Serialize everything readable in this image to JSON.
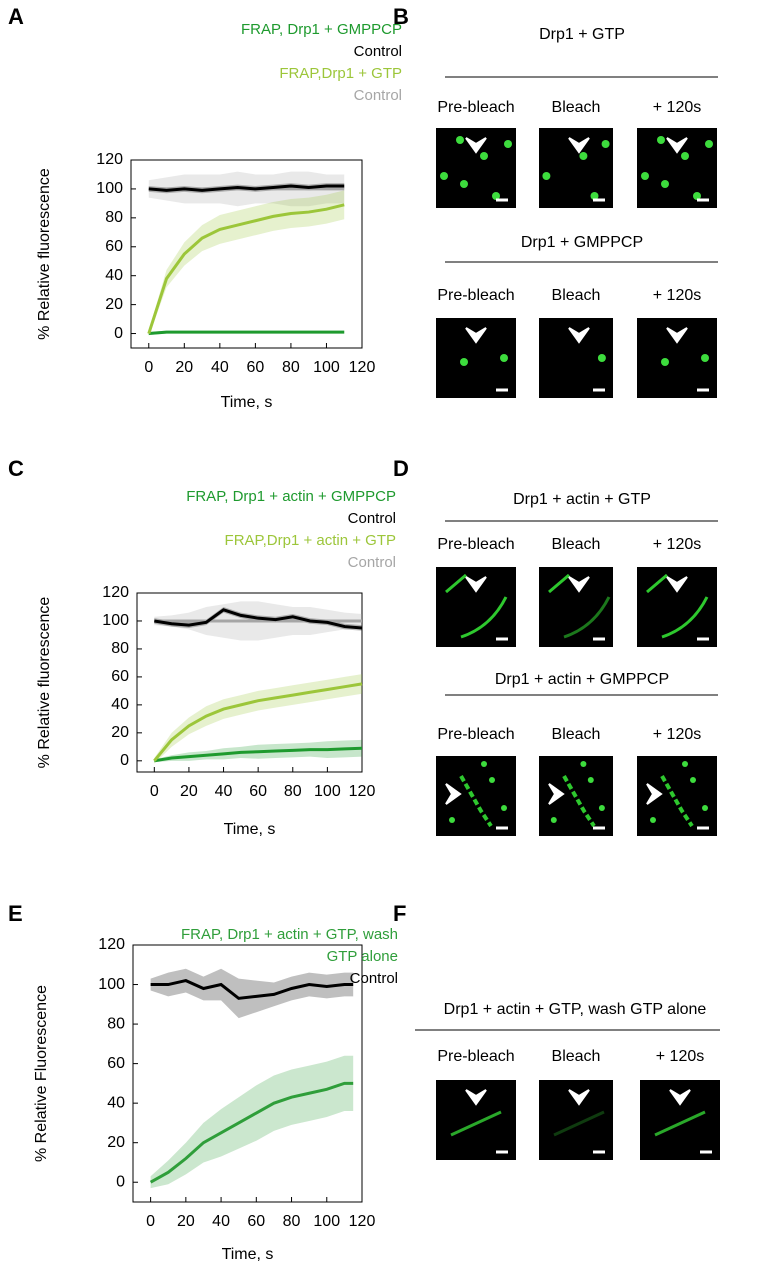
{
  "panel_letters": [
    "A",
    "B",
    "C",
    "D",
    "E",
    "F"
  ],
  "chart_data": [
    {
      "type": "line",
      "xlabel": "Time,  s",
      "ylabel": "% Relative  fluorescence",
      "x": [
        0,
        10,
        20,
        30,
        40,
        50,
        60,
        70,
        80,
        90,
        100,
        110
      ],
      "xlim": [
        -10,
        120
      ],
      "ylim": [
        -10,
        120
      ],
      "xticks": [
        0,
        20,
        40,
        60,
        80,
        100,
        120
      ],
      "yticks": [
        0,
        20,
        40,
        60,
        80,
        100,
        120
      ],
      "series": [
        {
          "name": "FRAP,  Drp1 + GMPPCP",
          "color": "#1e9a2e",
          "values": [
            0,
            1,
            1,
            1,
            1,
            1,
            1,
            1,
            1,
            1,
            1,
            1
          ],
          "error": [
            1,
            1,
            1,
            1,
            1,
            1,
            1,
            1,
            1,
            1,
            1,
            1
          ]
        },
        {
          "name": "Control",
          "color": "#000000",
          "values": [
            100,
            99,
            100,
            99,
            100,
            101,
            100,
            101,
            102,
            101,
            102,
            102
          ],
          "error": [
            2,
            2,
            2,
            2,
            2,
            2,
            2,
            2,
            2,
            2,
            2,
            2
          ]
        },
        {
          "name": "FRAP,Drp1 + GTP",
          "color": "#9cc63a",
          "values": [
            0,
            38,
            55,
            66,
            72,
            75,
            78,
            81,
            83,
            84,
            86,
            89
          ],
          "error": [
            2,
            6,
            8,
            9,
            10,
            10,
            10,
            10,
            10,
            10,
            10,
            10
          ]
        },
        {
          "name": "Control",
          "color": "#a6a6a6",
          "values": [
            100,
            100,
            100,
            100,
            100,
            100,
            100,
            100,
            100,
            100,
            100,
            100
          ],
          "error": [
            6,
            8,
            10,
            10,
            10,
            12,
            10,
            10,
            12,
            12,
            10,
            10
          ]
        }
      ]
    },
    {
      "type": "line",
      "xlabel": "Time,  s",
      "ylabel": "% Relative  fluorescence",
      "x": [
        0,
        10,
        20,
        30,
        40,
        50,
        60,
        70,
        80,
        90,
        100,
        110,
        120
      ],
      "xlim": [
        -10,
        120
      ],
      "ylim": [
        -8,
        120
      ],
      "xticks": [
        0,
        20,
        40,
        60,
        80,
        100,
        120
      ],
      "yticks": [
        0,
        20,
        40,
        60,
        80,
        100,
        120
      ],
      "series": [
        {
          "name": "FRAP,  Drp1 + actin + GMPPCP",
          "color": "#1e9a2e",
          "values": [
            0,
            2,
            3,
            4,
            5,
            6,
            6.5,
            7,
            7.5,
            8,
            8,
            8.5,
            9
          ],
          "error": [
            1,
            2,
            3,
            3,
            4,
            4,
            5,
            5,
            5,
            5,
            6,
            6,
            6
          ]
        },
        {
          "name": "Control",
          "color": "#000000",
          "values": [
            100,
            98,
            97,
            99,
            108,
            104,
            102,
            101,
            103,
            100,
            99,
            96,
            95
          ],
          "error": [
            2,
            2,
            2,
            2,
            2,
            2,
            2,
            2,
            2,
            2,
            2,
            2,
            2
          ]
        },
        {
          "name": "FRAP,Drp1 + actin + GTP",
          "color": "#9cc63a",
          "values": [
            0,
            15,
            25,
            32,
            37,
            40,
            43,
            45,
            47,
            49,
            51,
            53,
            55
          ],
          "error": [
            2,
            5,
            6,
            7,
            7,
            7,
            7,
            7,
            7,
            7,
            7,
            7,
            7
          ]
        },
        {
          "name": "Control",
          "color": "#a6a6a6",
          "values": [
            100,
            100,
            100,
            100,
            100,
            100,
            100,
            100,
            100,
            100,
            100,
            100,
            100
          ],
          "error": [
            3,
            4,
            6,
            10,
            12,
            14,
            14,
            12,
            10,
            10,
            8,
            6,
            5
          ]
        }
      ]
    },
    {
      "type": "line",
      "xlabel": "Time,  s",
      "ylabel": "% Relative  Fluorescence",
      "x": [
        0,
        10,
        20,
        30,
        40,
        50,
        60,
        70,
        80,
        90,
        100,
        110,
        115
      ],
      "xlim": [
        -10,
        120
      ],
      "ylim": [
        -10,
        120
      ],
      "xticks": [
        0,
        20,
        40,
        60,
        80,
        100,
        120
      ],
      "yticks": [
        0,
        20,
        40,
        60,
        80,
        100,
        120
      ],
      "series": [
        {
          "name": "FRAP,  Drp1  + actin + GTP, wash GTP  alone",
          "color": "#2f9e3a",
          "values": [
            0,
            5,
            12,
            20,
            25,
            30,
            35,
            40,
            43,
            45,
            47,
            50,
            50
          ],
          "error": [
            3,
            6,
            8,
            10,
            12,
            13,
            14,
            14,
            14,
            14,
            14,
            14,
            14
          ]
        },
        {
          "name": "Control",
          "color": "#000000",
          "values": [
            100,
            100,
            102,
            98,
            100,
            93,
            94,
            95,
            98,
            100,
            99,
            100,
            100
          ],
          "error": [
            3,
            6,
            6,
            6,
            8,
            10,
            8,
            6,
            6,
            6,
            6,
            6,
            6
          ]
        }
      ]
    }
  ],
  "image_panels": [
    {
      "rows": [
        {
          "title": "Drp1 + GTP",
          "labels": [
            "Pre-bleach",
            "Bleach",
            "+ 120s"
          ]
        },
        {
          "title": "Drp1 + GMPPCP",
          "labels": [
            "Pre-bleach",
            "Bleach",
            "+ 120s"
          ]
        }
      ]
    },
    {
      "rows": [
        {
          "title": "Drp1 + actin + GTP",
          "labels": [
            "Pre-bleach",
            "Bleach",
            "+ 120s"
          ]
        },
        {
          "title": "Drp1 + actin + GMPPCP",
          "labels": [
            "Pre-bleach",
            "Bleach",
            "+ 120s"
          ]
        }
      ]
    },
    {
      "rows": [
        {
          "title": "Drp1 + actin + GTP, wash GTP  alone",
          "labels": [
            "Pre-bleach",
            "Bleach",
            "+ 120s"
          ]
        }
      ]
    }
  ]
}
